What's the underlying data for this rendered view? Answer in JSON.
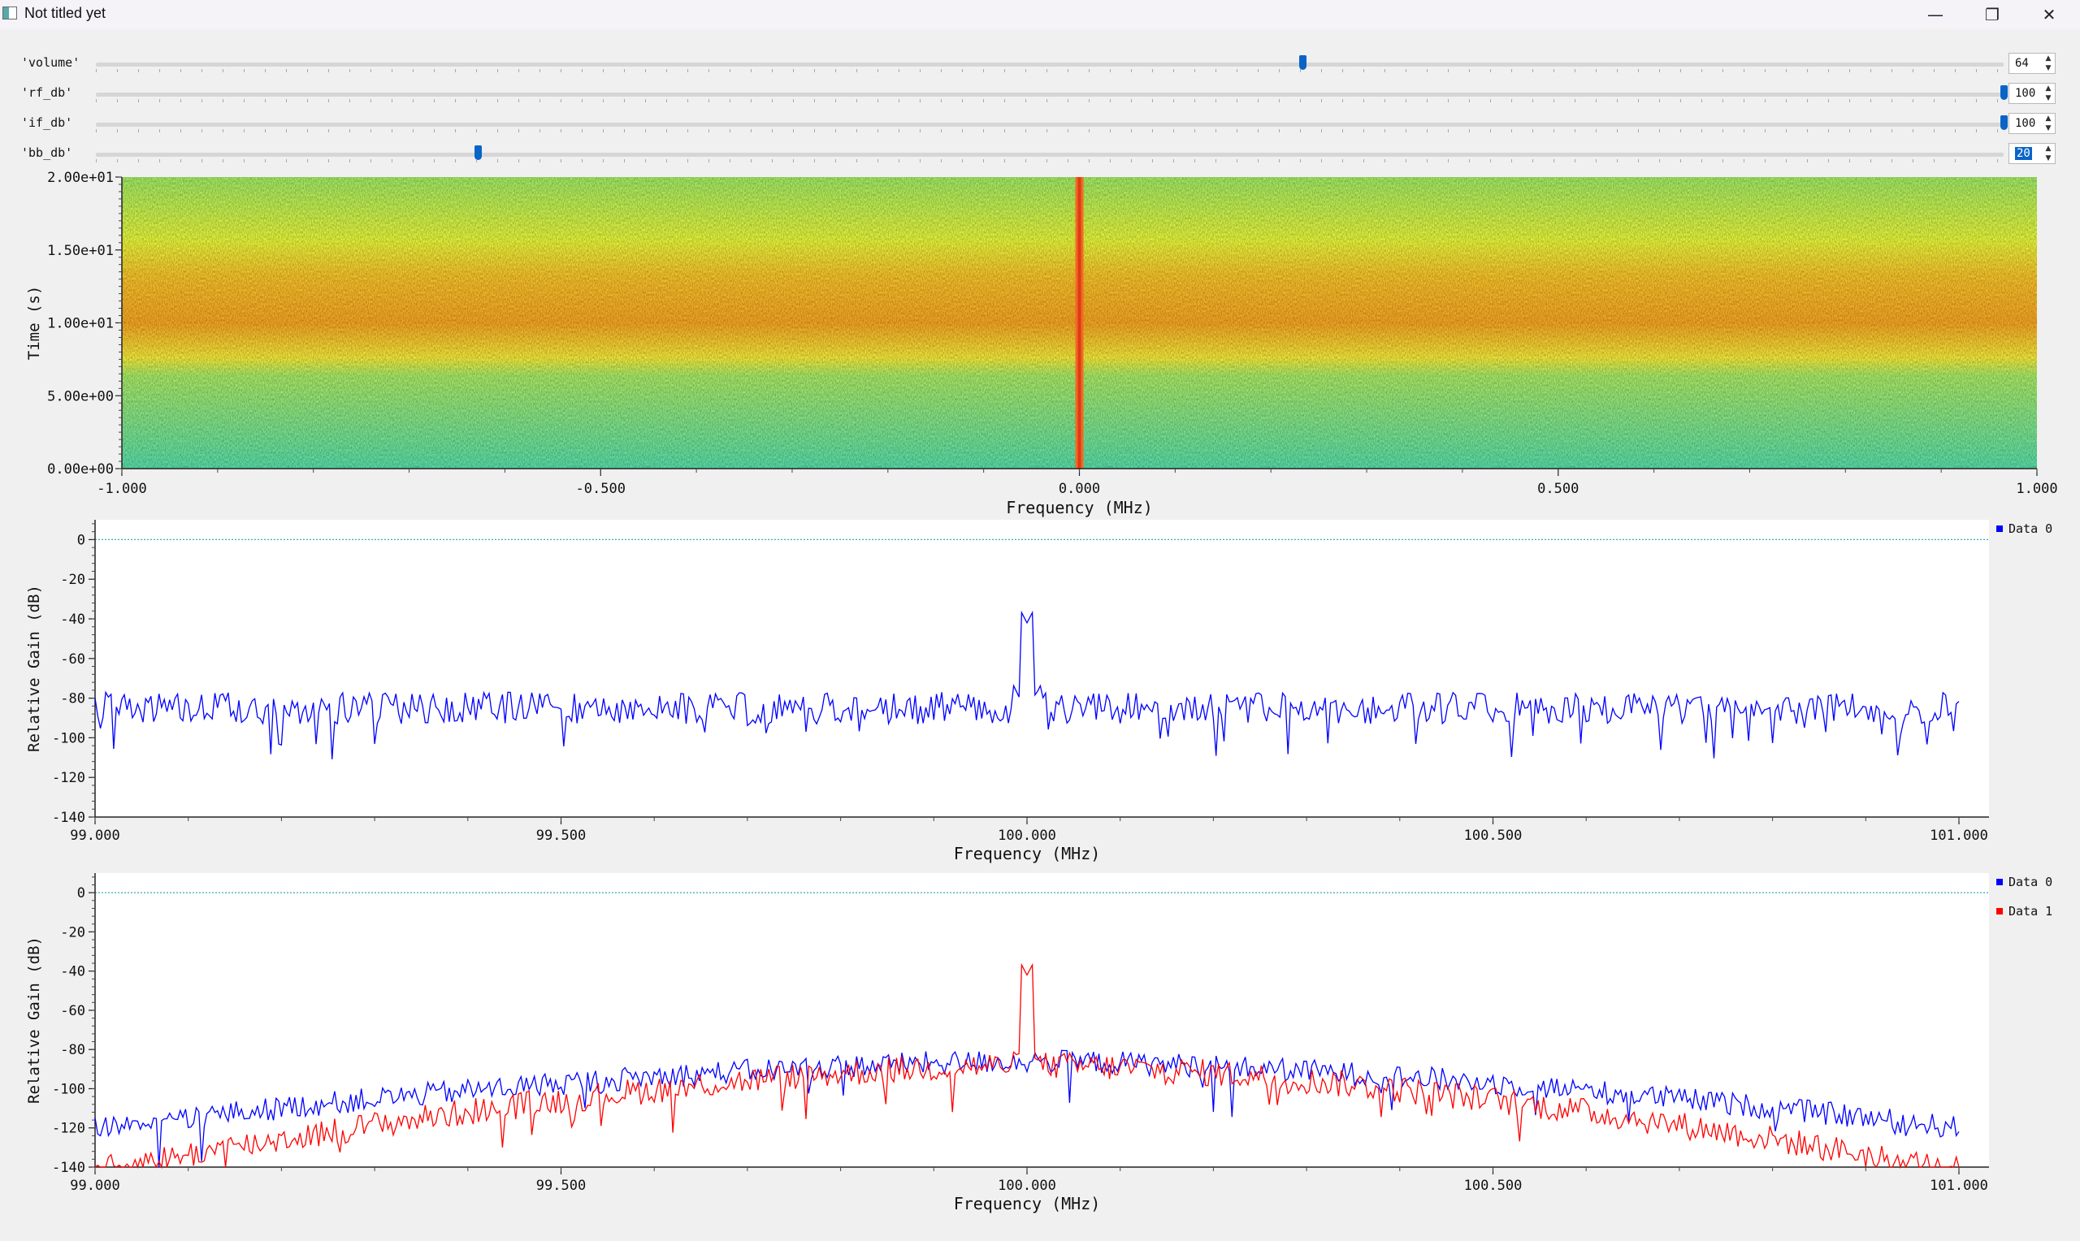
{
  "window": {
    "title": "Not titled yet",
    "minimize_glyph": "—",
    "restore_glyph": "❐",
    "close_glyph": "✕"
  },
  "controls": [
    {
      "label": "'volume'",
      "value": "64",
      "fraction": 0.6325
    },
    {
      "label": "'rf_db'",
      "value": "100",
      "fraction": 1.0
    },
    {
      "label": "'if_db'",
      "value": "100",
      "fraction": 1.0
    },
    {
      "label": "'bb_db'",
      "value": "20",
      "fraction": 0.2,
      "selected": true
    }
  ],
  "colors": {
    "series_blue": "#0000ff",
    "series_red": "#ff0000",
    "slider_thumb": "#0a64c8",
    "reference_line": "#3aa9b0"
  },
  "waterfall": {
    "ylabel": "Time (s)",
    "xlabel": "Frequency (MHz)",
    "yticks": [
      "2.00e+01",
      "1.50e+01",
      "1.00e+01",
      "5.00e+00",
      "0.00e+00"
    ],
    "xticks": [
      "-1.000",
      "-0.500",
      "0.000",
      "0.500",
      "1.000"
    ]
  },
  "chart_data": [
    {
      "type": "line",
      "xlabel": "Frequency (MHz)",
      "ylabel": "Relative Gain (dB)",
      "xlim": [
        99.0,
        101.0
      ],
      "ylim": [
        -140,
        10
      ],
      "xtick_labels": [
        "99.000",
        "99.500",
        "100.000",
        "100.500",
        "101.000"
      ],
      "ytick_labels": [
        "0",
        "-20",
        "-40",
        "-60",
        "-80",
        "-100",
        "-120",
        "-140"
      ],
      "reference_line_y": 0,
      "legend": "top-right",
      "series": [
        {
          "name": "Data 0",
          "color": "#0000ff",
          "baseline_db": -85,
          "noise_db": 8,
          "peak_x": 100.0,
          "peak_db": -42
        }
      ]
    },
    {
      "type": "line",
      "xlabel": "Frequency (MHz)",
      "ylabel": "Relative Gain (dB)",
      "xlim": [
        99.0,
        101.0
      ],
      "ylim": [
        -140,
        10
      ],
      "xtick_labels": [
        "99.000",
        "99.500",
        "100.000",
        "100.500",
        "101.000"
      ],
      "ytick_labels": [
        "0",
        "-20",
        "-40",
        "-60",
        "-80",
        "-100",
        "-120",
        "-140"
      ],
      "reference_line_y": 0,
      "legend": "top-right",
      "series": [
        {
          "name": "Data 0",
          "color": "#0000ff",
          "center_db": -86,
          "edge_db": -120,
          "noise_db": 6
        },
        {
          "name": "Data 1",
          "color": "#ff0000",
          "center_db": -88,
          "edge_db": -142,
          "noise_db": 7,
          "peak_x": 100.0,
          "peak_db": -42
        }
      ]
    }
  ]
}
